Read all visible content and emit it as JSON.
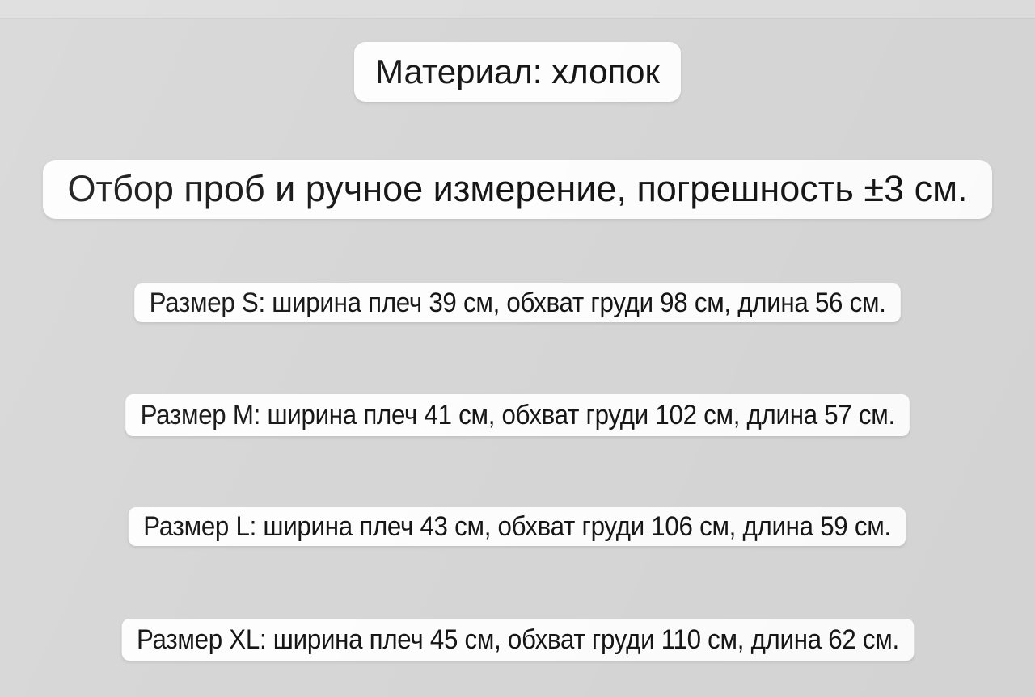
{
  "page": {
    "background_color": "#d6d6d6",
    "pill_color": "#fdfdfd",
    "text_color": "#161616"
  },
  "material": {
    "text": "Материал: хлопок",
    "value": "хлопок"
  },
  "measurement_note": {
    "text": "Отбор проб и ручное измерение, погрешность ±3 см.",
    "tolerance_cm": "±3"
  },
  "sizes": [
    {
      "size": "S",
      "shoulder_width_cm": 39,
      "chest_cm": 98,
      "length_cm": 56,
      "text": "Размер S: ширина плеч 39 см, обхват груди 98 см, длина 56 см."
    },
    {
      "size": "M",
      "shoulder_width_cm": 41,
      "chest_cm": 102,
      "length_cm": 57,
      "text": "Размер M: ширина плеч 41 см, обхват груди 102 см, длина 57 см."
    },
    {
      "size": "L",
      "shoulder_width_cm": 43,
      "chest_cm": 106,
      "length_cm": 59,
      "text": "Размер L: ширина плеч 43 см, обхват груди 106 см, длина 59 см."
    },
    {
      "size": "XL",
      "shoulder_width_cm": 45,
      "chest_cm": 110,
      "length_cm": 62,
      "text": "Размер XL: ширина плеч 45 см, обхват груди 110 см, длина 62 см."
    }
  ]
}
